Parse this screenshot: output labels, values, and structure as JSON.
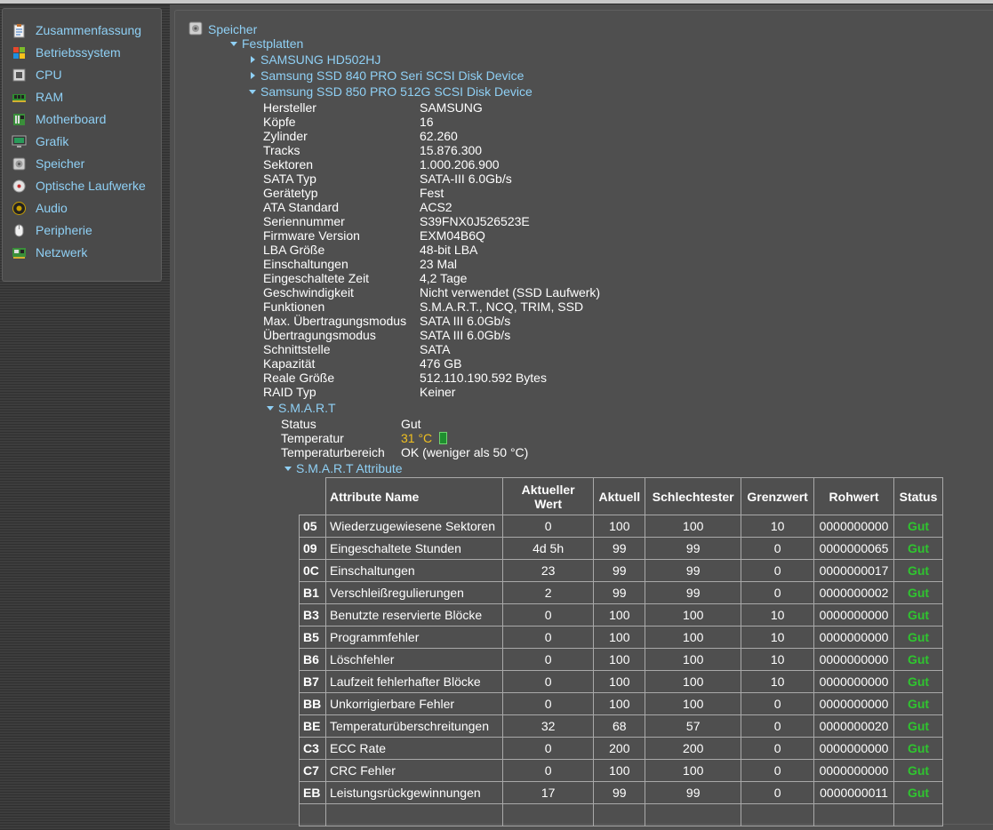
{
  "sidebar": {
    "items": [
      {
        "label": "Zusammenfassung",
        "icon": "summary-clipboard-icon"
      },
      {
        "label": "Betriebssystem",
        "icon": "windows-flag-icon"
      },
      {
        "label": "CPU",
        "icon": "cpu-chip-icon"
      },
      {
        "label": "RAM",
        "icon": "ram-module-icon"
      },
      {
        "label": "Motherboard",
        "icon": "motherboard-icon"
      },
      {
        "label": "Grafik",
        "icon": "monitor-icon"
      },
      {
        "label": "Speicher",
        "icon": "hard-disk-icon"
      },
      {
        "label": "Optische Laufwerke",
        "icon": "optical-disc-icon"
      },
      {
        "label": "Audio",
        "icon": "speaker-icon"
      },
      {
        "label": "Peripherie",
        "icon": "mouse-icon"
      },
      {
        "label": "Netzwerk",
        "icon": "network-card-icon"
      }
    ]
  },
  "tree": {
    "root": "Speicher",
    "group": "Festplatten",
    "disks": [
      "SAMSUNG HD502HJ",
      "Samsung SSD 840 PRO Seri SCSI Disk Device",
      "Samsung SSD 850 PRO 512G SCSI Disk Device"
    ]
  },
  "properties": [
    {
      "key": "Hersteller",
      "value": "SAMSUNG"
    },
    {
      "key": "Köpfe",
      "value": "16"
    },
    {
      "key": "Zylinder",
      "value": "62.260"
    },
    {
      "key": "Tracks",
      "value": "15.876.300"
    },
    {
      "key": "Sektoren",
      "value": "1.000.206.900"
    },
    {
      "key": "SATA Typ",
      "value": "SATA-III 6.0Gb/s"
    },
    {
      "key": "Gerätetyp",
      "value": "Fest"
    },
    {
      "key": "ATA Standard",
      "value": "ACS2"
    },
    {
      "key": "Seriennummer",
      "value": "S39FNX0J526523E"
    },
    {
      "key": "Firmware Version",
      "value": "EXM04B6Q"
    },
    {
      "key": "LBA Größe",
      "value": "48-bit LBA"
    },
    {
      "key": "Einschaltungen",
      "value": "23 Mal"
    },
    {
      "key": "Eingeschaltete Zeit",
      "value": "4,2 Tage"
    },
    {
      "key": "Geschwindigkeit",
      "value": "Nicht verwendet (SSD Laufwerk)"
    },
    {
      "key": "Funktionen",
      "value": "S.M.A.R.T., NCQ, TRIM, SSD"
    },
    {
      "key": "Max. Übertragungsmodus",
      "value": "SATA III 6.0Gb/s"
    },
    {
      "key": "Übertragungsmodus",
      "value": "SATA III 6.0Gb/s"
    },
    {
      "key": "Schnittstelle",
      "value": "SATA"
    },
    {
      "key": "Kapazität",
      "value": "476 GB"
    },
    {
      "key": "Reale Größe",
      "value": "512.110.190.592 Bytes"
    },
    {
      "key": "RAID Typ",
      "value": "Keiner"
    }
  ],
  "smart": {
    "label": "S.M.A.R.T",
    "status_key": "Status",
    "status_value": "Gut",
    "temp_key": "Temperatur",
    "temp_value": "31 °C",
    "range_key": "Temperaturbereich",
    "range_value": "OK (weniger als 50 °C)",
    "attributes_label": "S.M.A.R.T Attribute",
    "columns": [
      "Attribute Name",
      "Aktueller Wert",
      "Aktuell",
      "Schlechtester",
      "Grenzwert",
      "Rohwert",
      "Status"
    ],
    "rows": [
      {
        "code": "05",
        "name": "Wiederzugewiesene Sektoren",
        "value": "0",
        "current": "100",
        "worst": "100",
        "threshold": "10",
        "raw": "0000000000",
        "status": "Gut"
      },
      {
        "code": "09",
        "name": "Eingeschaltete Stunden",
        "value": "4d 5h",
        "current": "99",
        "worst": "99",
        "threshold": "0",
        "raw": "0000000065",
        "status": "Gut"
      },
      {
        "code": "0C",
        "name": "Einschaltungen",
        "value": "23",
        "current": "99",
        "worst": "99",
        "threshold": "0",
        "raw": "0000000017",
        "status": "Gut"
      },
      {
        "code": "B1",
        "name": "Verschleißregulierungen",
        "value": "2",
        "current": "99",
        "worst": "99",
        "threshold": "0",
        "raw": "0000000002",
        "status": "Gut"
      },
      {
        "code": "B3",
        "name": "Benutzte reservierte Blöcke",
        "value": "0",
        "current": "100",
        "worst": "100",
        "threshold": "10",
        "raw": "0000000000",
        "status": "Gut"
      },
      {
        "code": "B5",
        "name": "Programmfehler",
        "value": "0",
        "current": "100",
        "worst": "100",
        "threshold": "10",
        "raw": "0000000000",
        "status": "Gut"
      },
      {
        "code": "B6",
        "name": "Löschfehler",
        "value": "0",
        "current": "100",
        "worst": "100",
        "threshold": "10",
        "raw": "0000000000",
        "status": "Gut"
      },
      {
        "code": "B7",
        "name": "Laufzeit fehlerhafter Blöcke",
        "value": "0",
        "current": "100",
        "worst": "100",
        "threshold": "10",
        "raw": "0000000000",
        "status": "Gut"
      },
      {
        "code": "BB",
        "name": "Unkorrigierbare Fehler",
        "value": "0",
        "current": "100",
        "worst": "100",
        "threshold": "0",
        "raw": "0000000000",
        "status": "Gut"
      },
      {
        "code": "BE",
        "name": "Temperaturüberschreitungen",
        "value": "32",
        "current": "68",
        "worst": "57",
        "threshold": "0",
        "raw": "0000000020",
        "status": "Gut"
      },
      {
        "code": "C3",
        "name": "ECC Rate",
        "value": "0",
        "current": "200",
        "worst": "200",
        "threshold": "0",
        "raw": "0000000000",
        "status": "Gut"
      },
      {
        "code": "C7",
        "name": "CRC Fehler",
        "value": "0",
        "current": "100",
        "worst": "100",
        "threshold": "0",
        "raw": "0000000000",
        "status": "Gut"
      },
      {
        "code": "EB",
        "name": "Leistungsrückgewinnungen",
        "value": "17",
        "current": "99",
        "worst": "99",
        "threshold": "0",
        "raw": "0000000011",
        "status": "Gut"
      }
    ]
  },
  "colors": {
    "link": "#8fd0f5",
    "good": "#2fc52f",
    "temperature": "#f0c020"
  }
}
